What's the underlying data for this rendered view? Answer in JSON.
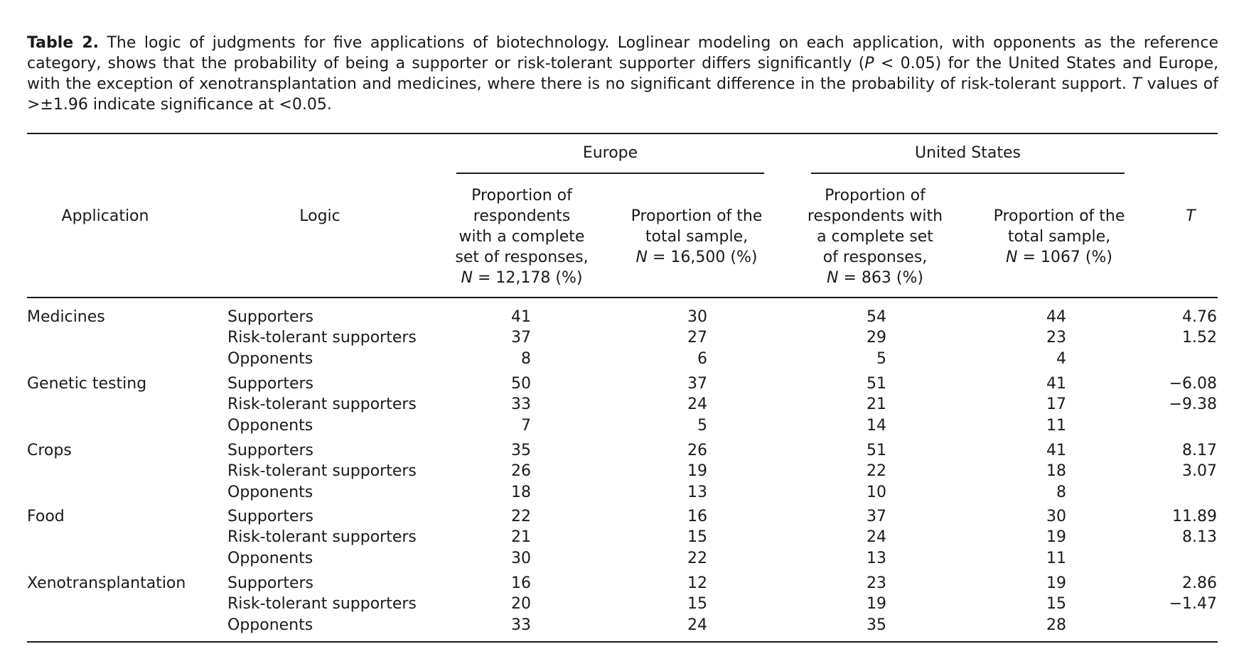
{
  "caption": {
    "label": "Table 2.",
    "text_1": " The logic of judgments for five applications of biotechnology. Loglinear modeling on each application, with opponents as the reference category, shows that the probability of being a supporter or risk-tolerant supporter differs significantly (",
    "p_symbol": "P",
    "text_2": " < 0.05) for the United States and Europe, with the exception of xenotransplantation and medicines, where there is no significant difference in the probability of risk-tolerant support. ",
    "t_symbol": "T",
    "text_3": " values of >±1.96 indicate significance at <0.05."
  },
  "headers": {
    "europe": "Europe",
    "united_states": "United States",
    "application": "Application",
    "logic": "Logic",
    "eu_complete_lines": [
      "Proportion of",
      "respondents",
      "with a complete",
      "set of responses,"
    ],
    "eu_complete_n": "N",
    "eu_complete_n_rest": " = 12,178 (%)",
    "eu_total_lines": [
      "Proportion of the",
      "total sample,"
    ],
    "eu_total_n": "N",
    "eu_total_n_rest": " = 16,500 (%)",
    "us_complete_lines": [
      "Proportion of",
      "respondents with",
      "a complete set",
      "of responses,"
    ],
    "us_complete_n": "N",
    "us_complete_n_rest": " = 863 (%)",
    "us_total_lines": [
      "Proportion of the",
      "total sample,"
    ],
    "us_total_n": "N",
    "us_total_n_rest": " = 1067 (%)",
    "t": "T"
  },
  "rows": [
    {
      "application": "Medicines",
      "logic": "Supporters",
      "eu_complete": "41",
      "eu_total": "30",
      "us_complete": "54",
      "us_total": "44",
      "t": "4.76"
    },
    {
      "application": "",
      "logic": "Risk-tolerant supporters",
      "eu_complete": "37",
      "eu_total": "27",
      "us_complete": "29",
      "us_total": "23",
      "t": "1.52"
    },
    {
      "application": "",
      "logic": "Opponents",
      "eu_complete": "8",
      "eu_total": "6",
      "us_complete": "5",
      "us_total": "4",
      "t": ""
    },
    {
      "application": "Genetic testing",
      "logic": "Supporters",
      "eu_complete": "50",
      "eu_total": "37",
      "us_complete": "51",
      "us_total": "41",
      "t": "−6.08"
    },
    {
      "application": "",
      "logic": "Risk-tolerant supporters",
      "eu_complete": "33",
      "eu_total": "24",
      "us_complete": "21",
      "us_total": "17",
      "t": "−9.38"
    },
    {
      "application": "",
      "logic": "Opponents",
      "eu_complete": "7",
      "eu_total": "5",
      "us_complete": "14",
      "us_total": "11",
      "t": ""
    },
    {
      "application": "Crops",
      "logic": "Supporters",
      "eu_complete": "35",
      "eu_total": "26",
      "us_complete": "51",
      "us_total": "41",
      "t": "8.17"
    },
    {
      "application": "",
      "logic": "Risk-tolerant supporters",
      "eu_complete": "26",
      "eu_total": "19",
      "us_complete": "22",
      "us_total": "18",
      "t": "3.07"
    },
    {
      "application": "",
      "logic": "Opponents",
      "eu_complete": "18",
      "eu_total": "13",
      "us_complete": "10",
      "us_total": "8",
      "t": ""
    },
    {
      "application": "Food",
      "logic": "Supporters",
      "eu_complete": "22",
      "eu_total": "16",
      "us_complete": "37",
      "us_total": "30",
      "t": "11.89"
    },
    {
      "application": "",
      "logic": "Risk-tolerant supporters",
      "eu_complete": "21",
      "eu_total": "15",
      "us_complete": "24",
      "us_total": "19",
      "t": "8.13"
    },
    {
      "application": "",
      "logic": "Opponents",
      "eu_complete": "30",
      "eu_total": "22",
      "us_complete": "13",
      "us_total": "11",
      "t": ""
    },
    {
      "application": "Xenotransplantation",
      "logic": "Supporters",
      "eu_complete": "16",
      "eu_total": "12",
      "us_complete": "23",
      "us_total": "19",
      "t": "2.86"
    },
    {
      "application": "",
      "logic": "Risk-tolerant supporters",
      "eu_complete": "20",
      "eu_total": "15",
      "us_complete": "19",
      "us_total": "15",
      "t": "−1.47"
    },
    {
      "application": "",
      "logic": "Opponents",
      "eu_complete": "33",
      "eu_total": "24",
      "us_complete": "35",
      "us_total": "28",
      "t": ""
    }
  ]
}
